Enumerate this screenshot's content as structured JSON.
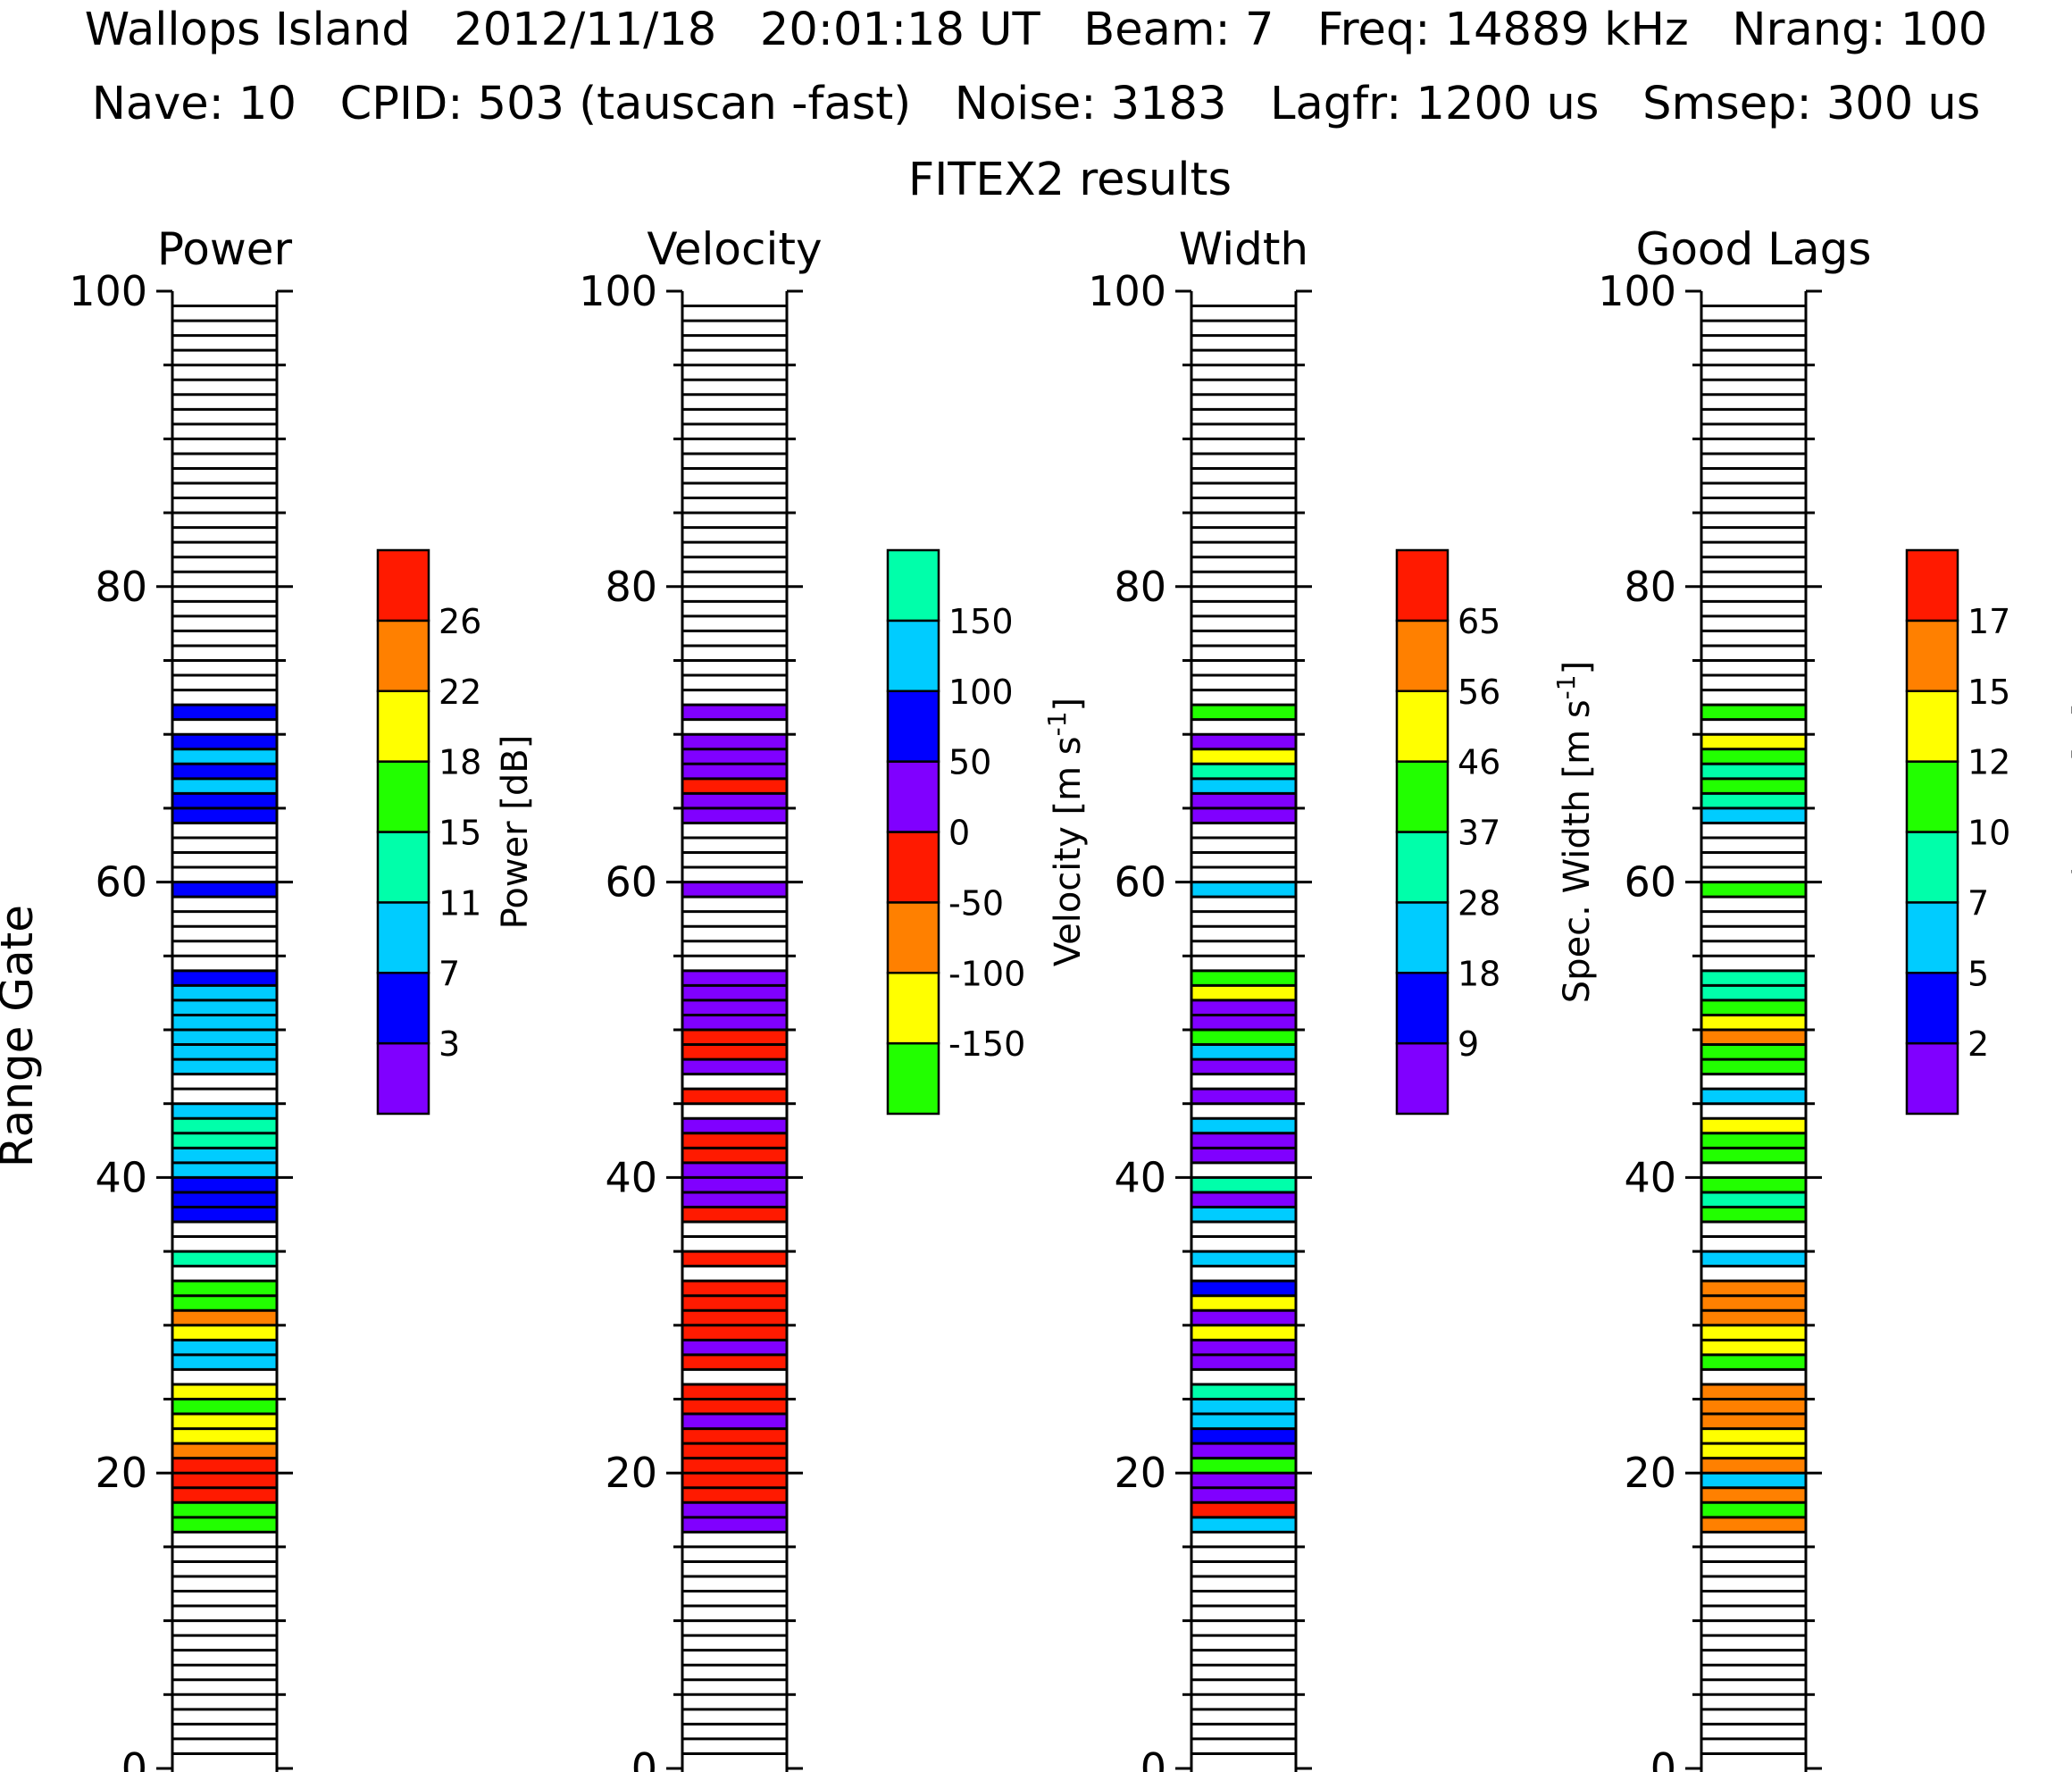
{
  "header": {
    "line1": [
      "Wallops Island",
      "2012/11/18",
      "20:01:18 UT",
      "Beam: 7",
      "Freq: 14889 kHz",
      "Nrang: 100"
    ],
    "line2": [
      "Nave: 10",
      "CPID: 503 (tauscan -fast)",
      "Noise: 3183",
      "Lagfr: 1200 us",
      "Smsep: 300 us"
    ],
    "subtitle": "FITEX2 results"
  },
  "colors": {
    "purple": "#8000ff",
    "blue": "#0000ff",
    "cyan": "#00ccff",
    "teal": "#00ffaa",
    "green": "#22ff00",
    "yellow": "#ffff00",
    "orange": "#ff8000",
    "red": "#ff1a00"
  },
  "chart_data": [
    {
      "type": "heatmap",
      "title": "Power",
      "ylabel": "Range Gate",
      "ylim": [
        0,
        100
      ],
      "yticks": [
        0,
        20,
        40,
        60,
        80,
        100
      ],
      "colorbar": {
        "label": "Power [dB]",
        "colors": [
          "purple",
          "blue",
          "cyan",
          "teal",
          "green",
          "yellow",
          "orange",
          "red"
        ],
        "ticks": [
          "3",
          "7",
          "11",
          "15",
          "18",
          "22",
          "26"
        ]
      },
      "gates": {
        "16": "green",
        "17": "green",
        "18": "red",
        "19": "red",
        "20": "red",
        "21": "orange",
        "22": "yellow",
        "23": "yellow",
        "24": "green",
        "25": "yellow",
        "27": "cyan",
        "28": "cyan",
        "29": "yellow",
        "30": "orange",
        "31": "green",
        "32": "green",
        "34": "teal",
        "37": "blue",
        "38": "blue",
        "39": "blue",
        "40": "cyan",
        "41": "cyan",
        "42": "teal",
        "43": "teal",
        "44": "cyan",
        "47": "cyan",
        "48": "cyan",
        "49": "cyan",
        "50": "cyan",
        "51": "cyan",
        "52": "cyan",
        "53": "blue",
        "59": "blue",
        "64": "blue",
        "65": "blue",
        "66": "cyan",
        "67": "blue",
        "68": "cyan",
        "69": "blue",
        "71": "blue"
      }
    },
    {
      "type": "heatmap",
      "title": "Velocity",
      "ylim": [
        0,
        100
      ],
      "yticks": [
        0,
        20,
        40,
        60,
        80,
        100
      ],
      "colorbar": {
        "label": "Velocity [m s^-1]",
        "colors": [
          "green",
          "yellow",
          "orange",
          "red",
          "purple",
          "blue",
          "cyan",
          "teal"
        ],
        "ticks": [
          "-150",
          "-100",
          "-50",
          "0",
          "50",
          "100",
          "150"
        ]
      },
      "gates": {
        "16": "purple",
        "17": "purple",
        "18": "red",
        "19": "red",
        "20": "red",
        "21": "red",
        "22": "red",
        "23": "purple",
        "24": "red",
        "25": "red",
        "27": "red",
        "28": "purple",
        "29": "red",
        "30": "red",
        "31": "red",
        "32": "red",
        "34": "red",
        "37": "red",
        "38": "purple",
        "39": "purple",
        "40": "purple",
        "41": "red",
        "42": "red",
        "43": "purple",
        "45": "red",
        "47": "purple",
        "48": "red",
        "49": "red",
        "50": "purple",
        "51": "purple",
        "52": "purple",
        "53": "purple",
        "59": "purple",
        "64": "purple",
        "65": "purple",
        "66": "red",
        "67": "purple",
        "68": "purple",
        "69": "purple",
        "71": "purple"
      }
    },
    {
      "type": "heatmap",
      "title": "Width",
      "ylim": [
        0,
        100
      ],
      "yticks": [
        0,
        20,
        40,
        60,
        80,
        100
      ],
      "colorbar": {
        "label": "Spec. Width [m s^-1]",
        "colors": [
          "purple",
          "blue",
          "cyan",
          "teal",
          "green",
          "yellow",
          "orange",
          "red"
        ],
        "ticks": [
          "9",
          "18",
          "28",
          "37",
          "46",
          "56",
          "65"
        ]
      },
      "gates": {
        "16": "cyan",
        "17": "red",
        "18": "purple",
        "19": "purple",
        "20": "green",
        "21": "purple",
        "22": "blue",
        "23": "cyan",
        "24": "cyan",
        "25": "teal",
        "27": "purple",
        "28": "purple",
        "29": "yellow",
        "30": "purple",
        "31": "yellow",
        "32": "blue",
        "34": "cyan",
        "37": "cyan",
        "38": "purple",
        "39": "teal",
        "41": "purple",
        "42": "purple",
        "43": "cyan",
        "45": "purple",
        "47": "purple",
        "48": "cyan",
        "49": "green",
        "50": "purple",
        "51": "purple",
        "52": "yellow",
        "53": "green",
        "59": "cyan",
        "64": "purple",
        "65": "purple",
        "66": "cyan",
        "67": "teal",
        "68": "yellow",
        "69": "purple",
        "71": "green"
      }
    },
    {
      "type": "heatmap",
      "title": "Good Lags",
      "ylim": [
        0,
        100
      ],
      "yticks": [
        0,
        20,
        40,
        60,
        80,
        100
      ],
      "colorbar": {
        "label": "Good Lags [#]",
        "colors": [
          "purple",
          "blue",
          "cyan",
          "teal",
          "green",
          "yellow",
          "orange",
          "red"
        ],
        "ticks": [
          "2",
          "5",
          "7",
          "10",
          "12",
          "15",
          "17"
        ]
      },
      "gates": {
        "16": "orange",
        "17": "green",
        "18": "orange",
        "19": "cyan",
        "20": "orange",
        "21": "yellow",
        "22": "yellow",
        "23": "orange",
        "24": "orange",
        "25": "orange",
        "27": "green",
        "28": "yellow",
        "29": "yellow",
        "30": "orange",
        "31": "orange",
        "32": "orange",
        "34": "cyan",
        "37": "green",
        "38": "teal",
        "39": "green",
        "41": "green",
        "42": "green",
        "43": "yellow",
        "45": "cyan",
        "47": "green",
        "48": "green",
        "49": "orange",
        "50": "yellow",
        "51": "green",
        "52": "teal",
        "53": "teal",
        "59": "green",
        "64": "cyan",
        "65": "teal",
        "66": "green",
        "67": "teal",
        "68": "green",
        "69": "yellow",
        "71": "green"
      }
    }
  ]
}
